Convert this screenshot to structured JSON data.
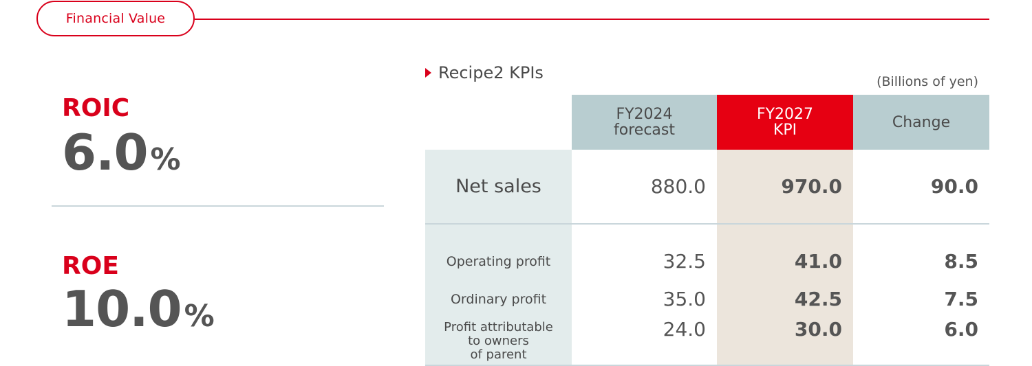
{
  "header": {
    "section_label": "Financial Value"
  },
  "metrics": [
    {
      "label": "ROIC",
      "value": "6.0",
      "unit": "%"
    },
    {
      "label": "ROE",
      "value": "10.0",
      "unit": "%"
    }
  ],
  "kpis": {
    "title": "Recipe2 KPIs",
    "units": "(Billions of yen)",
    "columns": [
      {
        "line1": "FY2024",
        "line2": "forecast"
      },
      {
        "line1": "FY2027",
        "line2": "KPI"
      },
      {
        "line1": "Change"
      }
    ],
    "rows": [
      {
        "label": "Net sales",
        "forecast": "880.0",
        "kpi": "970.0",
        "change": "90.0"
      },
      {
        "label": "Operating profit",
        "forecast": "32.5",
        "kpi": "41.0",
        "change": "8.5"
      },
      {
        "label": "Ordinary profit",
        "forecast": "35.0",
        "kpi": "42.5",
        "change": "7.5"
      },
      {
        "label_lines": [
          "Profit attributable",
          "to owners",
          "of parent"
        ],
        "forecast": "24.0",
        "kpi": "30.0",
        "change": "6.0"
      }
    ]
  },
  "colors": {
    "accent_red": "#e60012",
    "header_gray": "#b8cdd0",
    "label_cell": "#e3ecec",
    "kpi_column": "#ece5dc"
  }
}
